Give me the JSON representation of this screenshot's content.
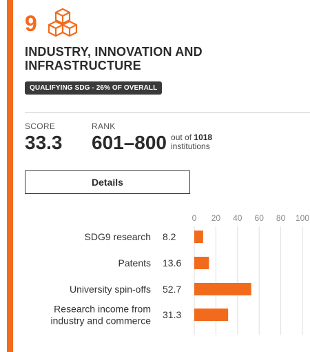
{
  "goal": {
    "number": "9",
    "icon": "cubes-icon",
    "title": "INDUSTRY, INNOVATION AND INFRASTRUCTURE",
    "badge": "QUALIFYING SDG - 26% OF OVERALL"
  },
  "score": {
    "label": "SCORE",
    "value": "33.3"
  },
  "rank": {
    "label": "RANK",
    "value": "601–800",
    "out_of_prefix": "out of",
    "out_of_count": "1018",
    "out_of_suffix": "institutions"
  },
  "details_button": {
    "label": "Details"
  },
  "colors": {
    "accent": "#f26b1d",
    "text": "#2b2b2b",
    "badge_bg": "#3a3a3a"
  },
  "chart_data": {
    "type": "bar",
    "orientation": "horizontal",
    "categories": [
      "SDG9 research",
      "Patents",
      "University spin-offs",
      "Research income from industry and commerce"
    ],
    "category_lines": [
      [
        "SDG9 research"
      ],
      [
        "Patents"
      ],
      [
        "University spin-offs"
      ],
      [
        "Research income from",
        "industry and commerce"
      ]
    ],
    "values": [
      8.2,
      13.6,
      52.7,
      31.3
    ],
    "value_labels": [
      "8.2",
      "13.6",
      "52.7",
      "31.3"
    ],
    "xlim": [
      0,
      100
    ],
    "ticks": [
      0,
      20,
      40,
      60,
      80,
      100
    ],
    "grid": true,
    "bar_color": "#f26b1d"
  }
}
